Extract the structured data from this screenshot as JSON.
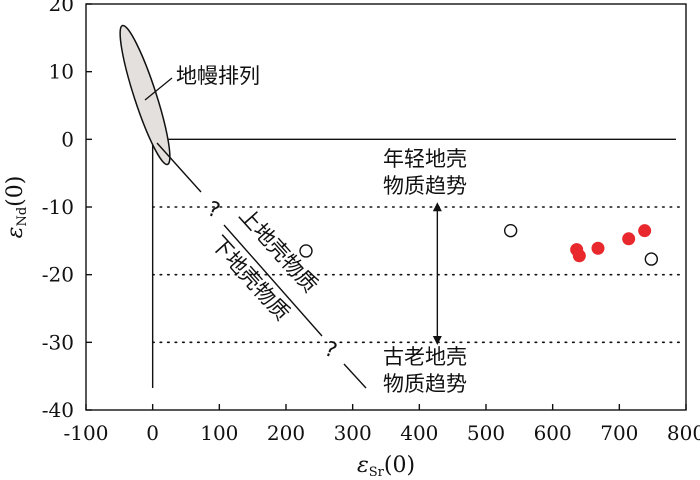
{
  "chart_data": {
    "type": "scatter",
    "xlim": [
      -100,
      800
    ],
    "ylim": [
      -40,
      20
    ],
    "x_ticks": [
      -100,
      0,
      100,
      200,
      300,
      400,
      500,
      600,
      700,
      800
    ],
    "y_ticks": [
      20,
      10,
      0,
      -10,
      -20,
      -30,
      -40
    ],
    "x_ticklabels": [
      "-100",
      "0",
      "100",
      "200",
      "300",
      "400",
      "500",
      "600",
      "700",
      "800"
    ],
    "y_ticklabels": [
      "20",
      "10",
      "0",
      "-10",
      "-20",
      "-30",
      "-40"
    ],
    "xlabel": {
      "symbol": "ε",
      "subscript": "Sr",
      "suffix": "(0)"
    },
    "ylabel": {
      "symbol": "ε",
      "subscript": "Nd",
      "suffix": "(0)"
    },
    "grid": false,
    "reference_lines": {
      "solid_horizontal_y": 0,
      "solid_vertical_x": 0,
      "dotted_horizontal_y": [
        -10,
        -20,
        -30
      ]
    },
    "series": [
      {
        "marker": "open-circle",
        "color": "#111111",
        "points": [
          [
            230,
            -16.5
          ],
          [
            537,
            -13.5
          ],
          [
            748,
            -17.7
          ]
        ]
      },
      {
        "marker": "filled-circle",
        "color": "#e8282d",
        "points": [
          [
            636,
            -16.3
          ],
          [
            640,
            -17.2
          ],
          [
            668,
            -16.1
          ],
          [
            714,
            -14.7
          ],
          [
            738,
            -13.5
          ]
        ]
      }
    ],
    "annotations": {
      "mantle_array": "地幔排列",
      "young_crust": [
        "年轻地壳",
        "物质趋势"
      ],
      "old_crust": [
        "古老地壳",
        "物质趋势"
      ],
      "upper_crust": "上地壳物质",
      "lower_crust": "下地壳物质",
      "question_mark": "?"
    }
  }
}
